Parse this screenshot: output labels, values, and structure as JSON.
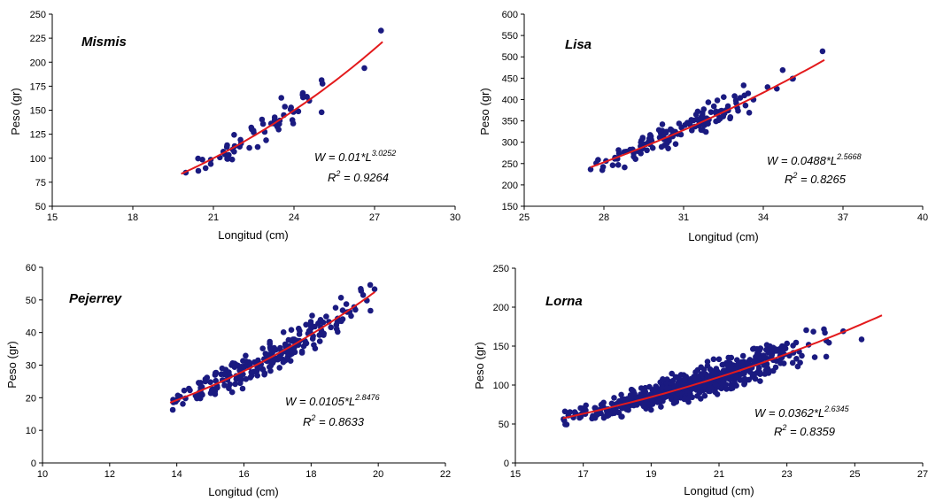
{
  "colors": {
    "points": "#1a1a80",
    "fit": "#e31a1c",
    "axis": "#000000",
    "background": "#ffffff"
  },
  "chart_data": [
    {
      "type": "scatter",
      "title": "Mismis",
      "xlabel": "Longitud (cm)",
      "ylabel": "Peso (gr)",
      "xlim": [
        15,
        30
      ],
      "ylim": [
        50,
        250
      ],
      "xticks": [
        15,
        18,
        21,
        24,
        27,
        30
      ],
      "yticks": [
        50,
        75,
        100,
        125,
        150,
        175,
        200,
        225,
        250
      ],
      "xticklabels": [
        "15",
        "18",
        "21",
        "24",
        "27",
        "30"
      ],
      "yticklabels": [
        "50",
        "75",
        "100",
        "125",
        "150",
        "175",
        "200",
        "225",
        "250"
      ],
      "fit": {
        "a": 0.01,
        "b": 3.0252,
        "x_range": [
          19.8,
          27.3
        ]
      },
      "equation": {
        "prefix": "W = 0.01*L",
        "exponent": "3.0252",
        "r2_prefix": "R",
        "r2_exp": "2",
        "r2_value": " = 0.9264"
      },
      "n_points": 60,
      "points": []
    },
    {
      "type": "scatter",
      "title": "Lisa",
      "xlabel": "Longitud (cm)",
      "ylabel": "Peso (gr)",
      "xlim": [
        25,
        40
      ],
      "ylim": [
        150,
        600
      ],
      "xticks": [
        25,
        28,
        31,
        34,
        37,
        40
      ],
      "yticks": [
        150,
        200,
        250,
        300,
        350,
        400,
        450,
        500,
        550,
        600
      ],
      "xticklabels": [
        "25",
        "28",
        "31",
        "34",
        "37",
        "40"
      ],
      "yticklabels": [
        "150",
        "200",
        "250",
        "300",
        "350",
        "400",
        "450",
        "500",
        "550",
        "600"
      ],
      "fit": {
        "a": 0.0488,
        "b": 2.5668,
        "x_range": [
          27.5,
          36.3
        ]
      },
      "equation": {
        "prefix": "W = 0.0488*L",
        "exponent": "2.5668",
        "r2_prefix": "R",
        "r2_exp": "2",
        "r2_value": " = 0.8265"
      },
      "n_points": 140,
      "points": []
    },
    {
      "type": "scatter",
      "title": "Pejerrey",
      "xlabel": "Longitud (cm)",
      "ylabel": "Peso (gr)",
      "xlim": [
        10,
        22
      ],
      "ylim": [
        0,
        60
      ],
      "xticks": [
        10,
        12,
        14,
        16,
        18,
        20,
        22
      ],
      "yticks": [
        0,
        10,
        20,
        30,
        40,
        50,
        60
      ],
      "xticklabels": [
        "10",
        "12",
        "14",
        "16",
        "18",
        "20",
        "22"
      ],
      "yticklabels": [
        "0",
        "10",
        "20",
        "30",
        "40",
        "50",
        "60"
      ],
      "fit": {
        "a": 0.0105,
        "b": 2.8476,
        "x_range": [
          13.8,
          19.9
        ]
      },
      "equation": {
        "prefix": "W = 0.0105*L",
        "exponent": "2.8476",
        "r2_prefix": "R",
        "r2_exp": "2",
        "r2_value": " = 0.8633"
      },
      "n_points": 230,
      "points": []
    },
    {
      "type": "scatter",
      "title": "Lorna",
      "xlabel": "Longitud (cm)",
      "ylabel": "Peso (gr)",
      "xlim": [
        15,
        27
      ],
      "ylim": [
        0,
        250
      ],
      "xticks": [
        15,
        17,
        19,
        21,
        23,
        25,
        27
      ],
      "yticks": [
        0,
        50,
        100,
        150,
        200,
        250
      ],
      "xticklabels": [
        "15",
        "17",
        "19",
        "21",
        "23",
        "25",
        "27"
      ],
      "yticklabels": [
        "0",
        "50",
        "100",
        "150",
        "200",
        "250"
      ],
      "fit": {
        "a": 0.0362,
        "b": 2.6345,
        "x_range": [
          16.4,
          25.8
        ]
      },
      "equation": {
        "prefix": "W = 0.0362*L",
        "exponent": "2.6345",
        "r2_prefix": "R",
        "r2_exp": "2",
        "r2_value": " = 0.8359"
      },
      "n_points": 700,
      "points": []
    }
  ]
}
